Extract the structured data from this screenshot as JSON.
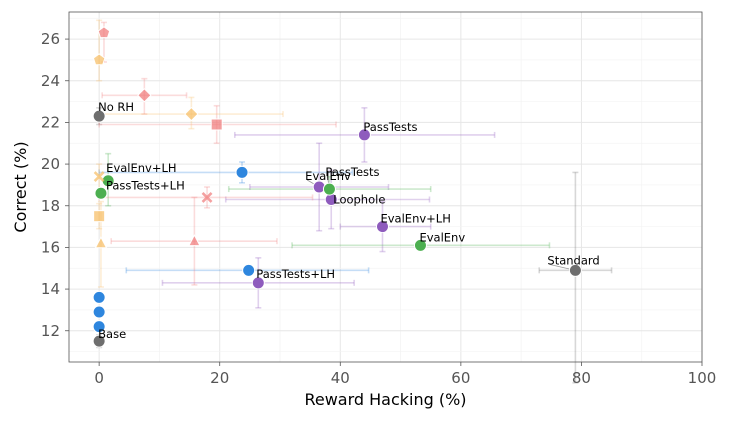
{
  "chart_data": {
    "type": "scatter",
    "xlabel": "Reward Hacking (%)",
    "ylabel": "Correct (%)",
    "xlim": [
      -5,
      100
    ],
    "ylim": [
      10.5,
      27.3
    ],
    "xticks": [
      0,
      20,
      40,
      60,
      80,
      100
    ],
    "yticks": [
      12,
      14,
      16,
      18,
      20,
      22,
      24,
      26
    ],
    "grid": true,
    "legend": "none",
    "colors": {
      "gray": "#6e6e6e",
      "blue": "#2e86de",
      "purple": "#8e5bbd",
      "green": "#4caf50",
      "red": "#f08080",
      "orange": "#f7c06b"
    },
    "points": [
      {
        "x": 0,
        "y": 11.5,
        "color": "gray",
        "marker": "circle",
        "label": "Base",
        "ey": 0.3
      },
      {
        "x": 0,
        "y": 22.3,
        "color": "gray",
        "marker": "circle",
        "label": "No RH",
        "ey": 0.4
      },
      {
        "x": 79,
        "y": 14.9,
        "color": "gray",
        "marker": "circle",
        "label": "Standard",
        "ex": [
          73,
          85
        ],
        "ey": [
          9.5,
          19.6
        ]
      },
      {
        "x": 0,
        "y": 12.2,
        "color": "blue",
        "marker": "circle"
      },
      {
        "x": 0,
        "y": 12.9,
        "color": "blue",
        "marker": "circle"
      },
      {
        "x": 0,
        "y": 13.6,
        "color": "blue",
        "marker": "circle"
      },
      {
        "x": 24.8,
        "y": 14.9,
        "color": "blue",
        "marker": "circle",
        "ex": [
          4.5,
          44.7
        ]
      },
      {
        "x": 23.7,
        "y": 19.6,
        "color": "blue",
        "marker": "circle",
        "ex": [
          0,
          42
        ],
        "ey": [
          19.1,
          20.1
        ]
      },
      {
        "x": 26.4,
        "y": 14.3,
        "color": "purple",
        "marker": "circle",
        "label": "PassTests+LH",
        "ex": [
          10.5,
          42.3
        ],
        "ey": [
          13.1,
          15.5
        ]
      },
      {
        "x": 36.5,
        "y": 18.9,
        "color": "purple",
        "marker": "circle",
        "label": "EvalEnv",
        "ex": [
          25,
          48
        ],
        "ey": [
          16.8,
          21
        ]
      },
      {
        "x": 38.5,
        "y": 18.3,
        "color": "purple",
        "marker": "circle",
        "label": "Loophole",
        "ex": [
          21,
          54.8
        ],
        "ey": [
          16.9,
          19.7
        ]
      },
      {
        "x": 44,
        "y": 21.4,
        "color": "purple",
        "marker": "circle",
        "label": "PassTests",
        "ex": [
          22.5,
          65.6
        ],
        "ey": [
          20.1,
          22.7
        ]
      },
      {
        "x": 47,
        "y": 17,
        "color": "purple",
        "marker": "circle",
        "label": "EvalEnv+LH",
        "ex": [
          40,
          55
        ],
        "ey": [
          15.8,
          18.2
        ]
      },
      {
        "x": 1.5,
        "y": 19.2,
        "color": "green",
        "marker": "circle",
        "label": "EvalEnv+LH",
        "ey": [
          18,
          20.5
        ]
      },
      {
        "x": 0.3,
        "y": 18.6,
        "color": "green",
        "marker": "circle",
        "label": "PassTests+LH"
      },
      {
        "x": 38.2,
        "y": 18.8,
        "color": "green",
        "marker": "circle",
        "label": "PassTests",
        "ex": [
          21.5,
          55
        ],
        "ey": [
          18.2,
          19.4
        ]
      },
      {
        "x": 53.3,
        "y": 16.1,
        "color": "green",
        "marker": "circle",
        "label": "EvalEnv",
        "ex": [
          32,
          74.7
        ]
      },
      {
        "x": 0.8,
        "y": 26.3,
        "color": "red",
        "marker": "pentagon",
        "ey": [
          24.9,
          26.8
        ]
      },
      {
        "x": 7.5,
        "y": 23.3,
        "color": "red",
        "marker": "diamond",
        "ex": [
          0.5,
          14.5
        ],
        "ey": [
          22.4,
          24.1
        ]
      },
      {
        "x": 19.5,
        "y": 21.9,
        "color": "red",
        "marker": "square",
        "ex": [
          0,
          39.3
        ],
        "ey": [
          21,
          22.8
        ]
      },
      {
        "x": 17.9,
        "y": 18.4,
        "color": "red",
        "marker": "x",
        "ex": [
          0,
          35.4
        ],
        "ey": [
          17.9,
          18.9
        ]
      },
      {
        "x": 15.8,
        "y": 16.3,
        "color": "red",
        "marker": "triangle",
        "ex": [
          2,
          29.5
        ],
        "ey": [
          14.2,
          18.4
        ]
      },
      {
        "x": 0,
        "y": 25,
        "color": "orange",
        "marker": "pentagon",
        "ey": [
          24,
          26.9
        ]
      },
      {
        "x": 15.3,
        "y": 22.4,
        "color": "orange",
        "marker": "diamond",
        "ex": [
          0,
          30.5
        ],
        "ey": [
          21.7,
          23.2
        ]
      },
      {
        "x": 0,
        "y": 17.5,
        "color": "orange",
        "marker": "square",
        "ey": [
          16.9,
          18.1
        ]
      },
      {
        "x": 0,
        "y": 19.4,
        "color": "orange",
        "marker": "x",
        "ey": [
          18.7,
          20
        ]
      },
      {
        "x": 0.3,
        "y": 16.2,
        "color": "orange",
        "marker": "triangle",
        "ey": [
          14.1,
          18.2
        ]
      }
    ]
  }
}
